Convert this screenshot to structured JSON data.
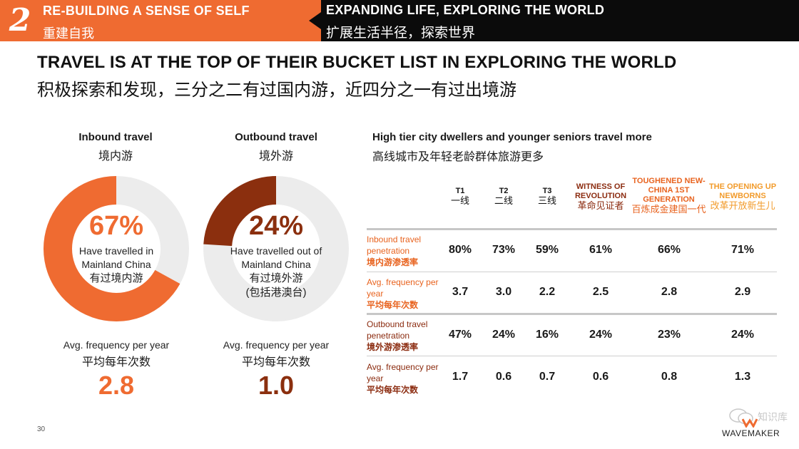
{
  "header": {
    "section_number": "2",
    "section_title_en": "RE-BUILDING A SENSE OF SELF",
    "section_title_zh": "重建自我",
    "subsection_title_en": "EXPANDING LIFE, EXPLORING THE WORLD",
    "subsection_title_zh": "扩展生活半径，探索世界"
  },
  "headline": {
    "en": "TRAVEL IS AT THE TOP OF THEIR BUCKET LIST IN EXPLORING THE WORLD",
    "zh": "积极探索和发现，三分之二有过国内游，近四分之一有过出境游"
  },
  "chart_data": [
    {
      "type": "pie",
      "title": "Inbound travel",
      "title_zh": "境内游",
      "values": [
        67,
        33
      ],
      "value_label": "67%",
      "center_text": [
        "Have travelled in",
        "Mainland China",
        "有过境内游"
      ],
      "colors": [
        "#ef6b31",
        "#ececec"
      ],
      "freq_label_en": "Avg. frequency per year",
      "freq_label_zh": "平均每年次数",
      "freq_value": "2.8",
      "freq_color": "#ef6b31"
    },
    {
      "type": "pie",
      "title": "Outbound travel",
      "title_zh": "境外游",
      "values": [
        24,
        76
      ],
      "value_label": "24%",
      "center_text": [
        "Have travelled out of",
        "Mainland China",
        "有过境外游",
        "(包括港澳台)"
      ],
      "colors": [
        "#8b2f0e",
        "#ececec"
      ],
      "freq_label_en": "Avg. frequency per year",
      "freq_label_zh": "平均每年次数",
      "freq_value": "1.0",
      "freq_color": "#8b2f0e"
    },
    {
      "type": "table",
      "title": "High tier city dwellers and younger seniors travel more",
      "title_zh": "高线城市及年轻老龄群体旅游更多",
      "columns": [
        {
          "en": "T1",
          "zh": "一线",
          "color": "#111111"
        },
        {
          "en": "T2",
          "zh": "二线",
          "color": "#111111"
        },
        {
          "en": "T3",
          "zh": "三线",
          "color": "#111111"
        },
        {
          "en": "WITNESS OF REVOLUTION",
          "zh": "革命见证者",
          "color": "#8b2b0f"
        },
        {
          "en": "TOUGHENED NEW-CHINA 1ST GENERATION",
          "zh": "百炼成金建国一代",
          "color": "#e8631f"
        },
        {
          "en": "THE OPENING UP NEWBORNS",
          "zh": "改革开放新生儿",
          "color": "#f29b2b"
        }
      ],
      "rows": [
        {
          "en": "Inbound travel penetration",
          "zh": "境内游渗透率",
          "values": [
            "80%",
            "73%",
            "59%",
            "61%",
            "66%",
            "71%"
          ]
        },
        {
          "en": "Avg. frequency per year",
          "zh": "平均每年次数",
          "values": [
            "3.7",
            "3.0",
            "2.2",
            "2.5",
            "2.8",
            "2.9"
          ]
        },
        {
          "en": "Outbound travel penetration",
          "zh": "境外游渗透率",
          "values": [
            "47%",
            "24%",
            "16%",
            "24%",
            "23%",
            "24%"
          ]
        },
        {
          "en": "Avg. frequency per year",
          "zh": "平均每年次数",
          "values": [
            "1.7",
            "0.6",
            "0.7",
            "0.6",
            "0.8",
            "1.3"
          ]
        }
      ]
    }
  ],
  "footer": {
    "page_number": "30",
    "watermark_text": "知识库",
    "brand": "WAVEMAKER"
  }
}
